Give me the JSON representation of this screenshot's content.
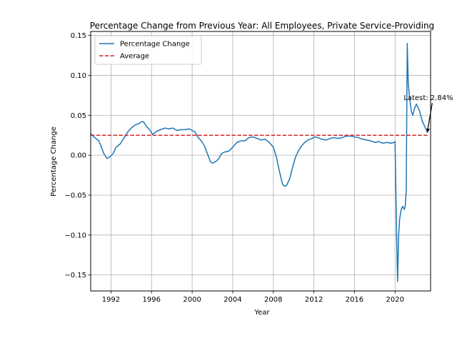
{
  "chart_data": {
    "type": "line",
    "title": "Percentage Change from Previous Year: All Employees, Private Service-Providing",
    "xlabel": "Year",
    "ylabel": "Percentage Change",
    "xlim": [
      1990.0,
      2023.5
    ],
    "ylim": [
      -0.17,
      0.155
    ],
    "grid": true,
    "legend_position": "upper-left",
    "x_ticks": [
      1992,
      1996,
      2000,
      2004,
      2008,
      2012,
      2016,
      2020
    ],
    "x_tick_labels": [
      "1992",
      "1996",
      "2000",
      "2004",
      "2008",
      "2012",
      "2016",
      "2020"
    ],
    "y_ticks": [
      -0.15,
      -0.1,
      -0.05,
      0.0,
      0.05,
      0.1,
      0.15
    ],
    "y_tick_labels": [
      "−0.15",
      "−0.10",
      "−0.05",
      "0.00",
      "0.05",
      "0.10",
      "0.15"
    ],
    "series": [
      {
        "name": "Percentage Change",
        "color": "#1f77b4",
        "style": "solid",
        "x": [
          1990.0,
          1990.4,
          1990.8,
          1991.0,
          1991.3,
          1991.6,
          1991.9,
          1992.2,
          1992.5,
          1992.9,
          1993.3,
          1993.7,
          1994.0,
          1994.4,
          1994.8,
          1995.0,
          1995.2,
          1995.5,
          1995.8,
          1996.1,
          1996.5,
          1996.9,
          1997.3,
          1997.7,
          1998.1,
          1998.5,
          1998.9,
          1999.3,
          1999.7,
          2000.0,
          2000.3,
          2000.6,
          2000.9,
          2001.2,
          2001.5,
          2001.8,
          2002.0,
          2002.3,
          2002.6,
          2002.9,
          2003.2,
          2003.6,
          2004.0,
          2004.4,
          2004.8,
          2005.2,
          2005.6,
          2006.0,
          2006.4,
          2006.8,
          2007.2,
          2007.6,
          2008.0,
          2008.3,
          2008.6,
          2008.9,
          2009.1,
          2009.3,
          2009.6,
          2009.9,
          2010.2,
          2010.5,
          2010.8,
          2011.1,
          2011.4,
          2011.8,
          2012.1,
          2012.4,
          2012.8,
          2013.2,
          2013.6,
          2014.0,
          2014.4,
          2014.8,
          2015.2,
          2015.6,
          2016.0,
          2016.4,
          2016.8,
          2017.2,
          2017.6,
          2018.0,
          2018.4,
          2018.8,
          2019.2,
          2019.6,
          2019.9,
          2020.0,
          2020.15,
          2020.25,
          2020.35,
          2020.45,
          2020.6,
          2020.75,
          2020.9,
          2021.0,
          2021.1,
          2021.2,
          2021.3,
          2021.45,
          2021.6,
          2021.75,
          2021.9,
          2022.1,
          2022.4,
          2022.7,
          2023.0,
          2023.2
        ],
        "y": [
          0.027,
          0.022,
          0.018,
          0.012,
          0.002,
          -0.004,
          -0.002,
          0.002,
          0.01,
          0.014,
          0.022,
          0.03,
          0.034,
          0.038,
          0.04,
          0.042,
          0.042,
          0.036,
          0.032,
          0.026,
          0.03,
          0.032,
          0.034,
          0.033,
          0.034,
          0.031,
          0.032,
          0.032,
          0.033,
          0.031,
          0.029,
          0.022,
          0.018,
          0.012,
          0.002,
          -0.008,
          -0.01,
          -0.008,
          -0.005,
          0.002,
          0.004,
          0.005,
          0.01,
          0.016,
          0.018,
          0.018,
          0.022,
          0.023,
          0.021,
          0.019,
          0.02,
          0.016,
          0.01,
          -0.002,
          -0.02,
          -0.036,
          -0.039,
          -0.038,
          -0.03,
          -0.015,
          -0.002,
          0.006,
          0.012,
          0.016,
          0.019,
          0.021,
          0.023,
          0.022,
          0.02,
          0.019,
          0.021,
          0.022,
          0.021,
          0.022,
          0.024,
          0.024,
          0.023,
          0.022,
          0.02,
          0.019,
          0.018,
          0.016,
          0.017,
          0.015,
          0.016,
          0.015,
          0.016,
          0.017,
          -0.1,
          -0.158,
          -0.1,
          -0.08,
          -0.068,
          -0.064,
          -0.068,
          -0.064,
          -0.045,
          0.14,
          0.09,
          0.07,
          0.055,
          0.05,
          0.058,
          0.064,
          0.056,
          0.042,
          0.034,
          0.028
        ]
      },
      {
        "name": "Average",
        "color": "#d62728",
        "style": "dashed",
        "x": [
          1990.0,
          2023.2
        ],
        "y": [
          0.025,
          0.025
        ]
      }
    ],
    "annotations": [
      {
        "text": "Latest: 2.84%",
        "x": 2020.85,
        "y": 0.06,
        "arrow_to": [
          2023.2,
          0.0284
        ]
      }
    ]
  }
}
